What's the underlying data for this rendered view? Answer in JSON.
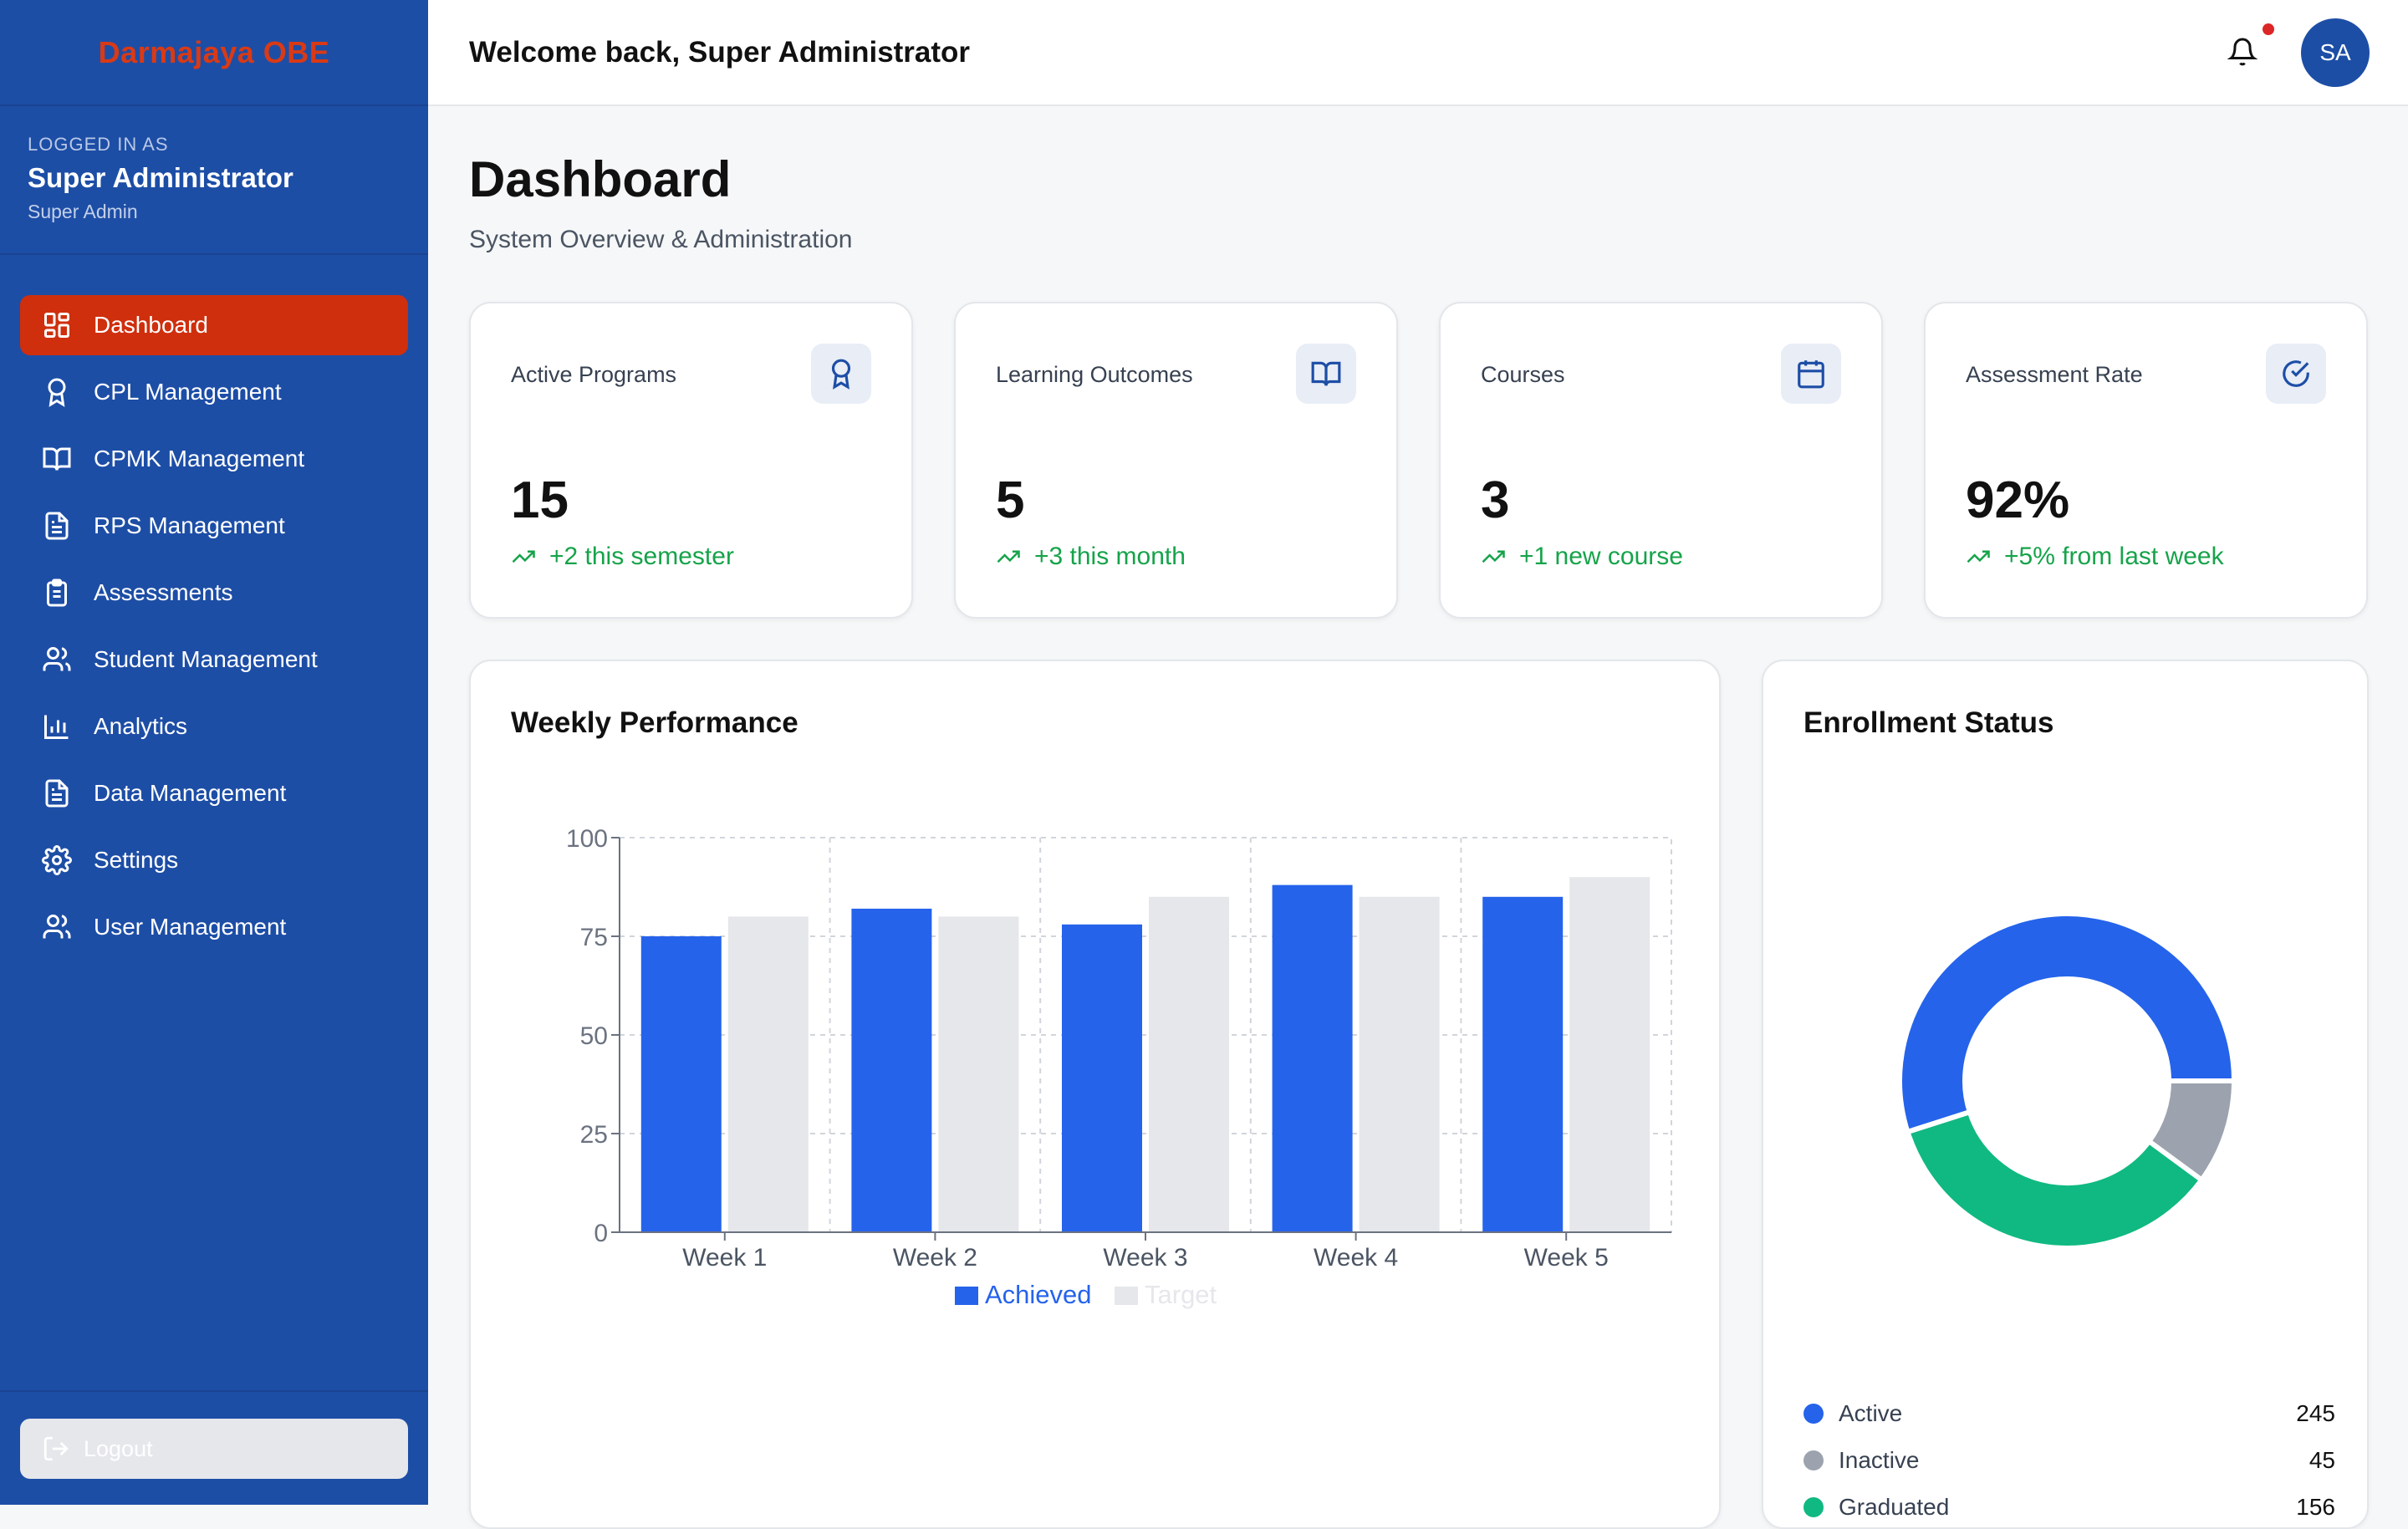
{
  "brand": "Darmajaya OBE",
  "user": {
    "caption": "LOGGED IN AS",
    "name": "Super Administrator",
    "role": "Super Admin"
  },
  "nav": [
    {
      "label": "Dashboard",
      "icon": "grid-icon",
      "active": true
    },
    {
      "label": "CPL Management",
      "icon": "award-icon"
    },
    {
      "label": "CPMK Management",
      "icon": "book-open-icon"
    },
    {
      "label": "RPS Management",
      "icon": "document-icon"
    },
    {
      "label": "Assessments",
      "icon": "clipboard-icon"
    },
    {
      "label": "Student Management",
      "icon": "users-icon"
    },
    {
      "label": "Analytics",
      "icon": "bar-chart-icon"
    },
    {
      "label": "Data Management",
      "icon": "document-icon"
    },
    {
      "label": "Settings",
      "icon": "gear-icon"
    },
    {
      "label": "User Management",
      "icon": "users-icon"
    }
  ],
  "logout": "Logout",
  "topbar": {
    "welcome": "Welcome back, Super Administrator",
    "avatar": "SA"
  },
  "page": {
    "title": "Dashboard",
    "subtitle": "System Overview & Administration"
  },
  "stats": [
    {
      "label": "Active Programs",
      "value": "15",
      "trend": "+2 this semester",
      "icon": "award-icon"
    },
    {
      "label": "Learning Outcomes",
      "value": "5",
      "trend": "+3 this month",
      "icon": "book-open-icon"
    },
    {
      "label": "Courses",
      "value": "3",
      "trend": "+1 new course",
      "icon": "calendar-icon"
    },
    {
      "label": "Assessment Rate",
      "value": "92%",
      "trend": "+5% from last week",
      "icon": "check-circle-icon"
    }
  ],
  "colors": {
    "sidebar": "#1d4ea6",
    "active_nav": "#cf2f0d",
    "achieved": "#2563eb",
    "target": "#e5e7eb",
    "trend": "#16a34a",
    "active": "#2563eb",
    "inactive": "#9ca3af",
    "graduated": "#10b981"
  },
  "weekly": {
    "title": "Weekly Performance",
    "chart_data": {
      "type": "bar",
      "categories": [
        "Week 1",
        "Week 2",
        "Week 3",
        "Week 4",
        "Week 5"
      ],
      "series": [
        {
          "name": "Achieved",
          "values": [
            75,
            82,
            78,
            88,
            85
          ]
        },
        {
          "name": "Target",
          "values": [
            80,
            80,
            85,
            85,
            90
          ]
        }
      ],
      "yticks": [
        0,
        25,
        50,
        75,
        100
      ],
      "ylim": [
        0,
        100
      ],
      "grid": true,
      "legend": "bottom"
    }
  },
  "enrollment": {
    "title": "Enrollment Status",
    "chart_data": {
      "type": "pie",
      "donut": true,
      "labels": [
        "Active",
        "Inactive",
        "Graduated"
      ],
      "values": [
        245,
        45,
        156
      ],
      "legend": "bottom"
    },
    "legend": [
      {
        "label": "Active",
        "value": "245"
      },
      {
        "label": "Inactive",
        "value": "45"
      },
      {
        "label": "Graduated",
        "value": "156"
      }
    ]
  }
}
